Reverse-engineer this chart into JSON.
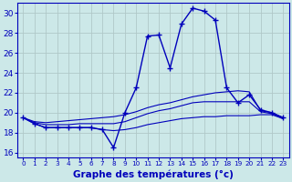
{
  "xlabel": "Graphe des températures (°c)",
  "xlim": [
    -0.5,
    23.5
  ],
  "ylim": [
    15.5,
    31
  ],
  "yticks": [
    16,
    18,
    20,
    22,
    24,
    26,
    28,
    30
  ],
  "xticks": [
    0,
    1,
    2,
    3,
    4,
    5,
    6,
    7,
    8,
    9,
    10,
    11,
    12,
    13,
    14,
    15,
    16,
    17,
    18,
    19,
    20,
    21,
    22,
    23
  ],
  "bg_color": "#cce8e8",
  "grid_color": "#b0c8c8",
  "line_color": "#0000bb",
  "hourly_temp": [
    19.5,
    18.9,
    18.5,
    18.5,
    18.5,
    18.5,
    18.5,
    18.3,
    16.5,
    20.0,
    22.5,
    27.7,
    27.8,
    24.5,
    28.9,
    30.5,
    30.2,
    29.3,
    22.5,
    21.0,
    21.8,
    20.3,
    20.0,
    19.5
  ],
  "line_max": [
    19.5,
    19.1,
    19.0,
    19.1,
    19.2,
    19.3,
    19.4,
    19.5,
    19.6,
    19.8,
    20.1,
    20.5,
    20.8,
    21.0,
    21.3,
    21.6,
    21.8,
    22.0,
    22.1,
    22.2,
    22.1,
    20.2,
    20.0,
    19.5
  ],
  "line_avg": [
    19.5,
    19.0,
    18.8,
    18.8,
    18.8,
    18.9,
    18.9,
    18.9,
    18.9,
    19.1,
    19.5,
    19.9,
    20.2,
    20.4,
    20.7,
    21.0,
    21.1,
    21.1,
    21.1,
    21.1,
    21.1,
    20.1,
    19.9,
    19.4
  ],
  "line_min": [
    19.5,
    18.9,
    18.5,
    18.5,
    18.5,
    18.5,
    18.5,
    18.3,
    18.2,
    18.3,
    18.5,
    18.8,
    19.0,
    19.2,
    19.4,
    19.5,
    19.6,
    19.6,
    19.7,
    19.7,
    19.7,
    19.8,
    19.8,
    19.4
  ]
}
